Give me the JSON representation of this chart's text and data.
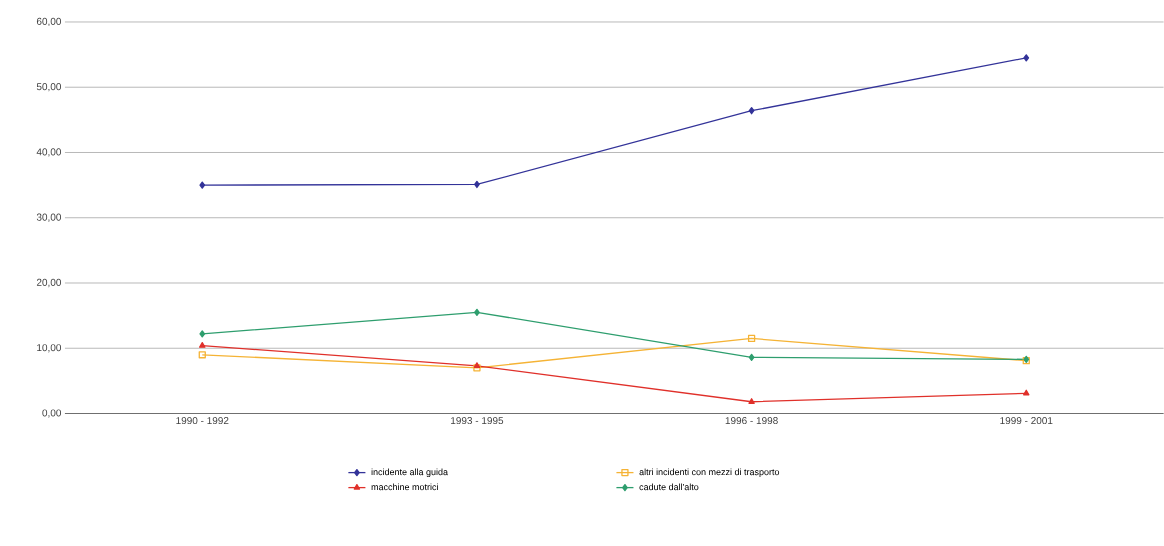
{
  "chart_data": {
    "type": "line",
    "categories": [
      "1990 - 1992",
      "1993 - 1995",
      "1996 - 1998",
      "1999 - 2001"
    ],
    "series": [
      {
        "name": "incidente alla guida",
        "color": "#333399",
        "marker": "diamond",
        "values": [
          35.0,
          35.1,
          46.4,
          54.5
        ]
      },
      {
        "name": "altri incidenti con mezzi di trasporto",
        "color": "#f5b335",
        "marker": "square",
        "values": [
          9.0,
          7.0,
          11.5,
          8.1
        ]
      },
      {
        "name": "macchine motrici",
        "color": "#e0302a",
        "marker": "triangle",
        "values": [
          10.4,
          7.3,
          1.8,
          3.1
        ]
      },
      {
        "name": "cadute dall'alto",
        "color": "#2e9e6e",
        "marker": "diamond",
        "values": [
          12.2,
          15.5,
          8.6,
          8.3
        ]
      }
    ],
    "ylim": [
      0,
      60
    ],
    "yticks": [
      {
        "value": 0,
        "label": "0,00"
      },
      {
        "value": 10,
        "label": "10,00"
      },
      {
        "value": 20,
        "label": "20,00"
      },
      {
        "value": 30,
        "label": "30,00"
      },
      {
        "value": 40,
        "label": "40,00"
      },
      {
        "value": 50,
        "label": "50,00"
      },
      {
        "value": 60,
        "label": "60,00"
      }
    ],
    "grid": "y",
    "legend": "bottom",
    "line_style": "solid"
  }
}
